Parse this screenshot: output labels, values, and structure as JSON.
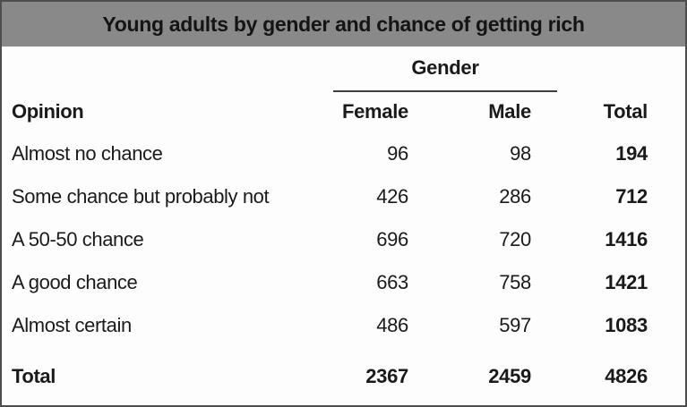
{
  "table": {
    "title": "Young adults by gender and chance of getting rich",
    "group_header": "Gender",
    "columns": {
      "opinion": "Opinion",
      "female": "Female",
      "male": "Male",
      "total": "Total"
    },
    "rows": [
      {
        "opinion": "Almost no chance",
        "female": "96",
        "male": "98",
        "total": "194"
      },
      {
        "opinion": "Some chance but probably not",
        "female": "426",
        "male": "286",
        "total": "712"
      },
      {
        "opinion": "A 50-50 chance",
        "female": "696",
        "male": "720",
        "total": "1416"
      },
      {
        "opinion": "A good chance",
        "female": "663",
        "male": "758",
        "total": "1421"
      },
      {
        "opinion": "Almost certain",
        "female": "486",
        "male": "597",
        "total": "1083"
      }
    ],
    "total_row": {
      "label": "Total",
      "female": "2367",
      "male": "2459",
      "total": "4826"
    }
  },
  "colors": {
    "title_bar_bg": "#898989",
    "border": "#4e4e4e",
    "text": "#1a1a1a",
    "background": "#fdfdfd"
  },
  "chart_data": {
    "type": "table",
    "title": "Young adults by gender and chance of getting rich",
    "column_group_label": "Gender",
    "columns": [
      "Opinion",
      "Female",
      "Male",
      "Total"
    ],
    "rows": [
      {
        "opinion": "Almost no chance",
        "female": 96,
        "male": 98,
        "total": 194
      },
      {
        "opinion": "Some chance but probably not",
        "female": 426,
        "male": 286,
        "total": 712
      },
      {
        "opinion": "A 50-50 chance",
        "female": 696,
        "male": 720,
        "total": 1416
      },
      {
        "opinion": "A good chance",
        "female": 663,
        "male": 758,
        "total": 1421
      },
      {
        "opinion": "Almost certain",
        "female": 486,
        "male": 597,
        "total": 1083
      }
    ],
    "totals": {
      "opinion": "Total",
      "female": 2367,
      "male": 2459,
      "total": 4826
    }
  }
}
